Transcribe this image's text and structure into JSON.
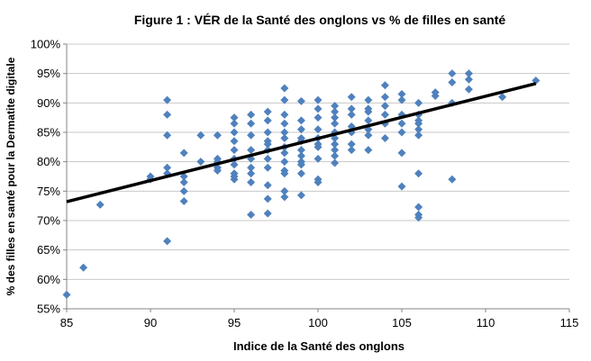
{
  "chart_data": {
    "type": "scatter",
    "title": "Figure 1 : VÉR de la Santé des onglons vs % de filles en santé",
    "xlabel": "Indice de la Santé des onglons",
    "ylabel": "% des filles en santé pour la Dermatite digitale",
    "xlim": [
      85,
      115
    ],
    "ylim": [
      55,
      100
    ],
    "xticks": [
      85,
      90,
      95,
      100,
      105,
      110,
      115
    ],
    "xtick_labels": [
      "85",
      "90",
      "95",
      "100",
      "105",
      "110",
      "115"
    ],
    "yticks": [
      55,
      60,
      65,
      70,
      75,
      80,
      85,
      90,
      95,
      100
    ],
    "ytick_labels": [
      "55%",
      "60%",
      "65%",
      "70%",
      "75%",
      "80%",
      "85%",
      "90%",
      "95%",
      "100%"
    ],
    "grid": "horizontal",
    "colors": {
      "points": "#4F81BD",
      "trendline": "#000000"
    },
    "trendline": {
      "x": [
        85,
        113
      ],
      "y": [
        73.2,
        93.3
      ]
    },
    "points": [
      [
        85,
        57.4
      ],
      [
        86,
        62.0
      ],
      [
        87,
        72.7
      ],
      [
        90,
        77.5
      ],
      [
        90,
        77.0
      ],
      [
        91,
        90.5
      ],
      [
        91,
        88.0
      ],
      [
        91,
        84.5
      ],
      [
        91,
        79.0
      ],
      [
        91,
        78.0
      ],
      [
        91,
        66.5
      ],
      [
        92,
        81.5
      ],
      [
        92,
        77.5
      ],
      [
        92,
        76.5
      ],
      [
        92,
        75.0
      ],
      [
        92,
        73.3
      ],
      [
        93,
        84.5
      ],
      [
        93,
        80.0
      ],
      [
        94,
        84.5
      ],
      [
        94,
        80.5
      ],
      [
        94,
        80.0
      ],
      [
        94,
        79.0
      ],
      [
        94,
        78.5
      ],
      [
        95,
        87.5
      ],
      [
        95,
        86.5
      ],
      [
        95,
        85.0
      ],
      [
        95,
        83.5
      ],
      [
        95,
        82.0
      ],
      [
        95,
        80.5
      ],
      [
        95,
        79.5
      ],
      [
        95,
        78.0
      ],
      [
        95,
        77.5
      ],
      [
        95,
        77.0
      ],
      [
        96,
        88.0
      ],
      [
        96,
        86.5
      ],
      [
        96,
        84.5
      ],
      [
        96,
        82.0
      ],
      [
        96,
        80.5
      ],
      [
        96,
        79.0
      ],
      [
        96,
        78.0
      ],
      [
        96,
        76.5
      ],
      [
        96,
        71.0
      ],
      [
        97,
        88.5
      ],
      [
        97,
        87.0
      ],
      [
        97,
        85.0
      ],
      [
        97,
        83.5
      ],
      [
        97,
        83.0
      ],
      [
        97,
        82.0
      ],
      [
        97,
        80.5
      ],
      [
        97,
        79.0
      ],
      [
        97,
        76.0
      ],
      [
        97,
        73.7
      ],
      [
        97,
        71.2
      ],
      [
        98,
        92.5
      ],
      [
        98,
        90.5
      ],
      [
        98,
        88.0
      ],
      [
        98,
        86.5
      ],
      [
        98,
        85.0
      ],
      [
        98,
        84.0
      ],
      [
        98,
        82.5
      ],
      [
        98,
        81.5
      ],
      [
        98,
        80.0
      ],
      [
        98,
        78.5
      ],
      [
        98,
        78.0
      ],
      [
        98,
        75.0
      ],
      [
        98,
        74.0
      ],
      [
        99,
        90.3
      ],
      [
        99,
        87.0
      ],
      [
        99,
        85.5
      ],
      [
        99,
        84.0
      ],
      [
        99,
        83.5
      ],
      [
        99,
        82.0
      ],
      [
        99,
        81.0
      ],
      [
        99,
        80.0
      ],
      [
        99,
        79.5
      ],
      [
        99,
        78.0
      ],
      [
        99,
        74.3
      ],
      [
        100,
        90.5
      ],
      [
        100,
        89.0
      ],
      [
        100,
        87.5
      ],
      [
        100,
        85.5
      ],
      [
        100,
        84.0
      ],
      [
        100,
        83.0
      ],
      [
        100,
        82.5
      ],
      [
        100,
        80.5
      ],
      [
        100,
        77.0
      ],
      [
        100,
        76.5
      ],
      [
        101,
        89.5
      ],
      [
        101,
        88.5
      ],
      [
        101,
        87.5
      ],
      [
        101,
        86.5
      ],
      [
        101,
        85.0
      ],
      [
        101,
        84.0
      ],
      [
        101,
        83.0
      ],
      [
        101,
        82.0
      ],
      [
        101,
        81.0
      ],
      [
        101,
        79.8
      ],
      [
        102,
        91.0
      ],
      [
        102,
        89.0
      ],
      [
        102,
        88.0
      ],
      [
        102,
        86.0
      ],
      [
        102,
        85.0
      ],
      [
        102,
        83.0
      ],
      [
        102,
        82.0
      ],
      [
        103,
        90.5
      ],
      [
        103,
        89.0
      ],
      [
        103,
        88.5
      ],
      [
        103,
        87.0
      ],
      [
        103,
        85.5
      ],
      [
        103,
        84.5
      ],
      [
        103,
        82.0
      ],
      [
        104,
        93.0
      ],
      [
        104,
        91.0
      ],
      [
        104,
        89.5
      ],
      [
        104,
        88.0
      ],
      [
        104,
        86.5
      ],
      [
        104,
        84.0
      ],
      [
        105,
        91.5
      ],
      [
        105,
        90.5
      ],
      [
        105,
        88.0
      ],
      [
        105,
        86.5
      ],
      [
        105,
        85.0
      ],
      [
        105,
        81.5
      ],
      [
        105,
        75.8
      ],
      [
        106,
        90.0
      ],
      [
        106,
        88.0
      ],
      [
        106,
        87.0
      ],
      [
        106,
        86.5
      ],
      [
        106,
        85.5
      ],
      [
        106,
        84.5
      ],
      [
        106,
        78.0
      ],
      [
        106,
        72.3
      ],
      [
        106,
        71.0
      ],
      [
        106,
        70.5
      ],
      [
        107,
        91.8
      ],
      [
        107,
        91.2
      ],
      [
        108,
        95.0
      ],
      [
        108,
        93.5
      ],
      [
        108,
        90.0
      ],
      [
        108,
        77.0
      ],
      [
        109,
        95.0
      ],
      [
        109,
        94.0
      ],
      [
        109,
        92.3
      ],
      [
        111,
        91.0
      ],
      [
        113,
        93.8
      ]
    ]
  }
}
